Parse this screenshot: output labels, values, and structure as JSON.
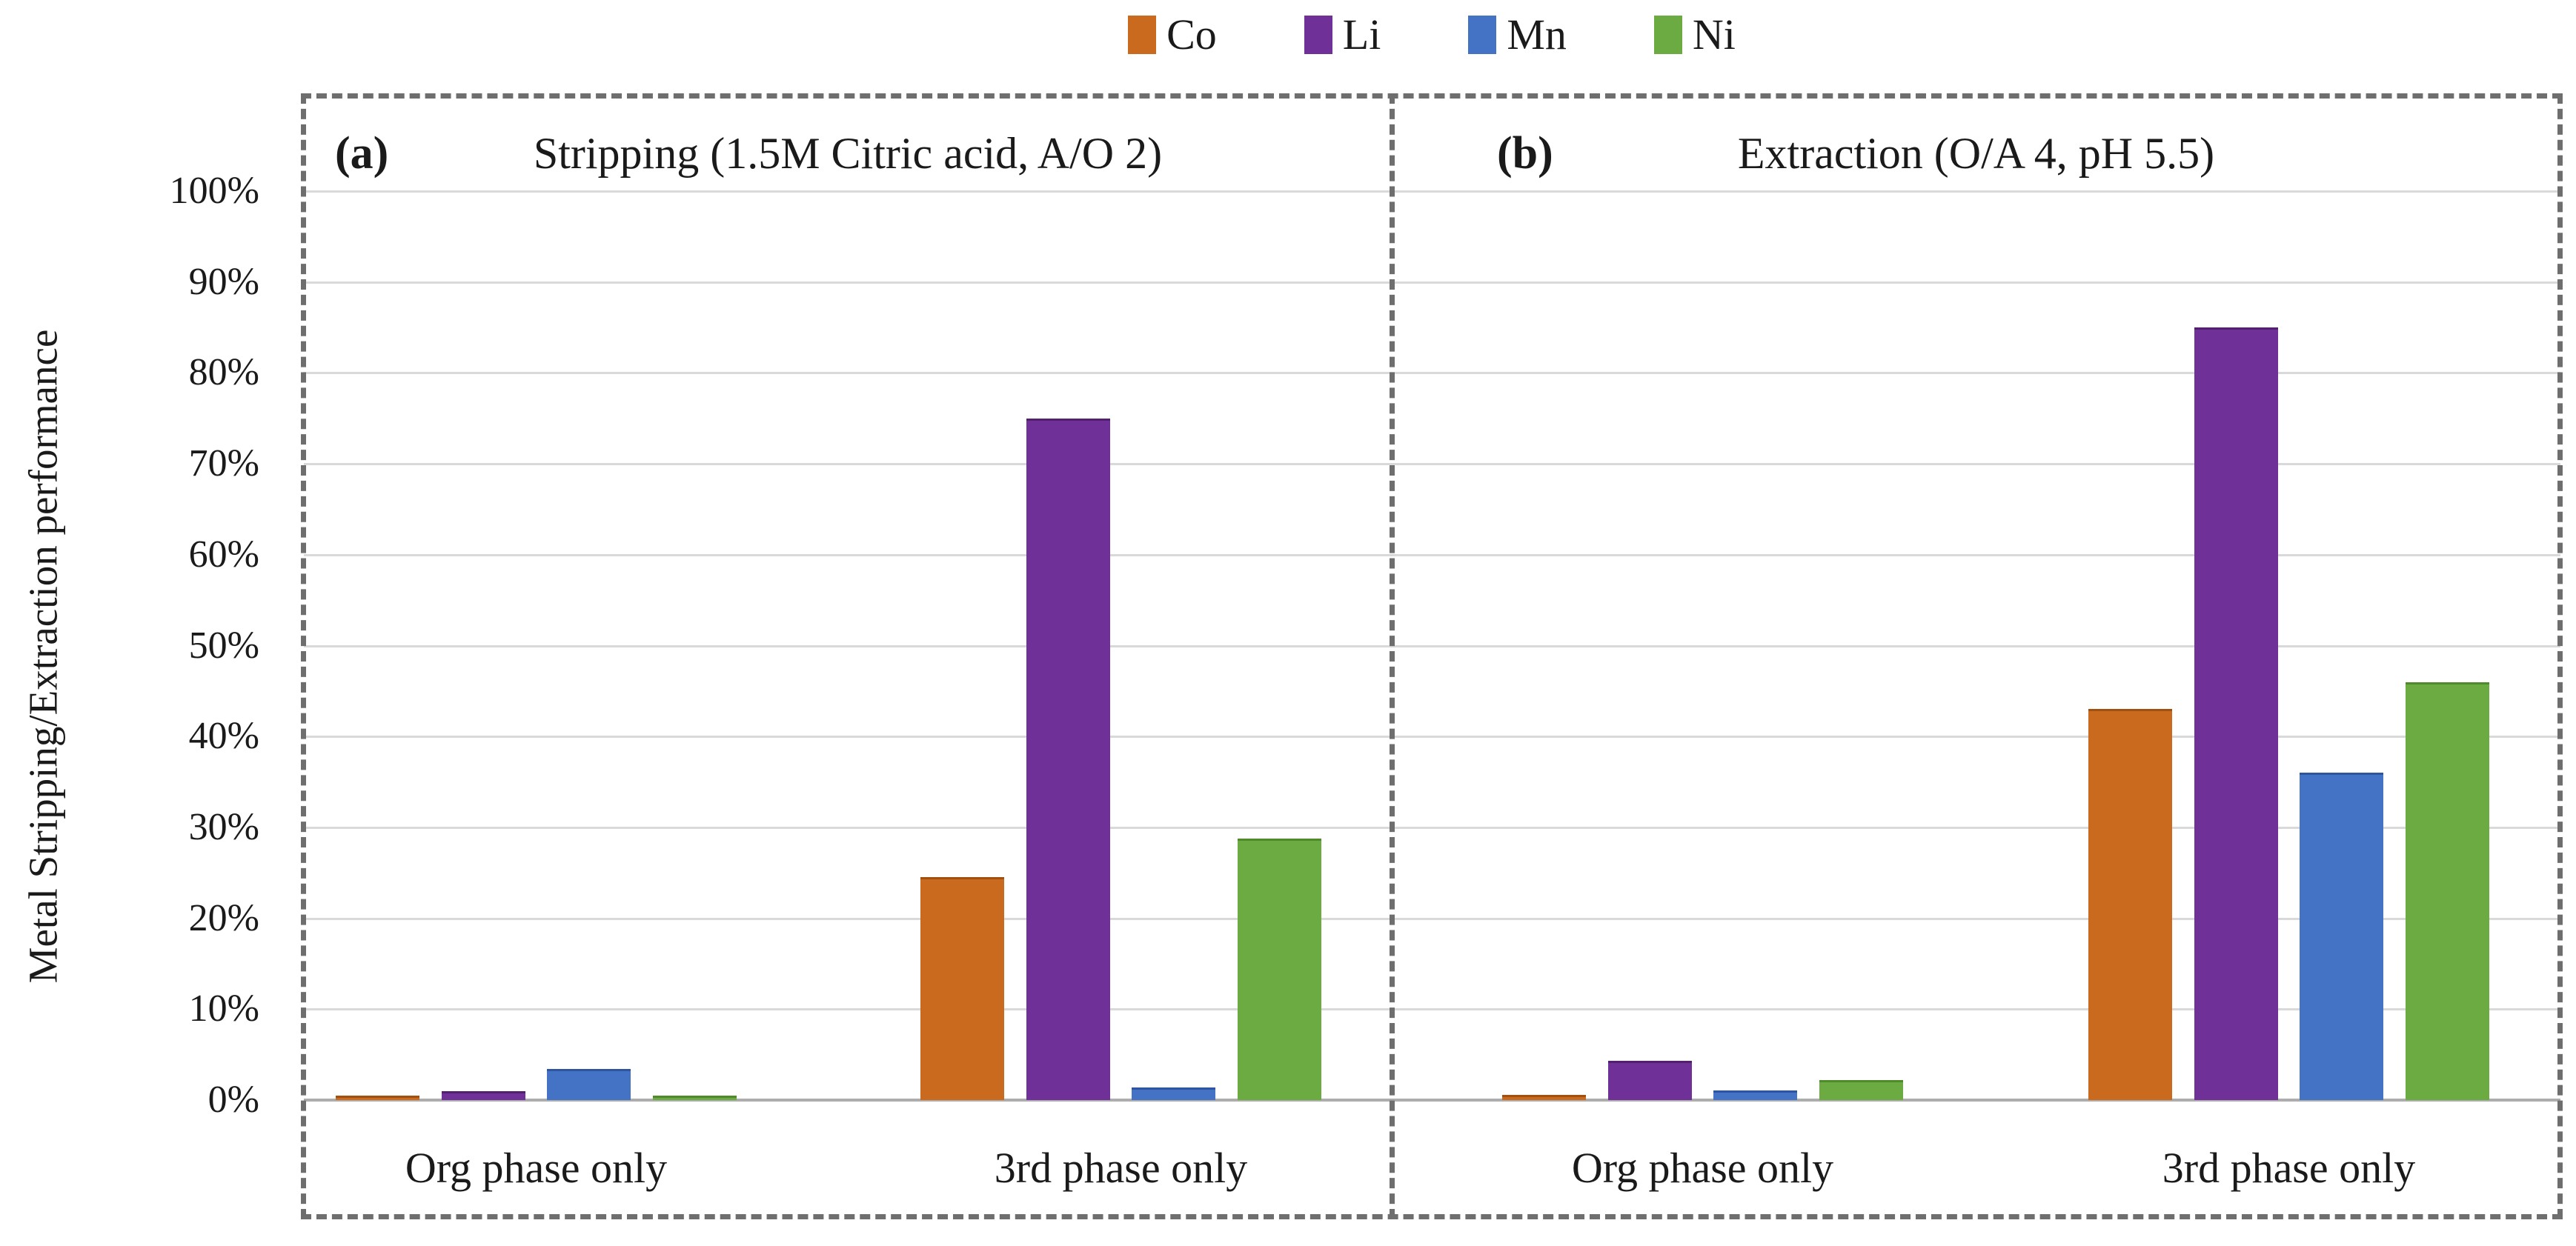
{
  "colors": {
    "background": "#FFFFFF",
    "gridline": "#D9D9D9",
    "axis_line": "#ADADAD",
    "dashed_border": "#6E6E6E"
  },
  "legend": {
    "items": [
      {
        "label": "Co",
        "color": "#C96A1F",
        "edge": "#A1500F"
      },
      {
        "label": "Li",
        "color": "#6F3198",
        "edge": "#53206F"
      },
      {
        "label": "Mn",
        "color": "#4472C4",
        "edge": "#2F54A0"
      },
      {
        "label": "Ni",
        "color": "#6BAB41",
        "edge": "#4F8A2B"
      }
    ]
  },
  "chart_data": {
    "type": "bar",
    "ylabel": "Metal Stripping/Extraction performance",
    "ylim": [
      0,
      100
    ],
    "ytick_step": 10,
    "y_tick_labels": [
      "0%",
      "10%",
      "20%",
      "30%",
      "40%",
      "50%",
      "60%",
      "70%",
      "80%",
      "90%",
      "100%"
    ],
    "grid": true,
    "legend_position": "top-center",
    "unit": "percent",
    "panels": [
      {
        "marker": "(a)",
        "title": "Stripping (1.5M Citric acid, A/O 2)",
        "categories": [
          "Org phase only",
          "3rd phase only"
        ],
        "series": [
          {
            "name": "Co",
            "values": [
              0.5,
              24.5
            ]
          },
          {
            "name": "Li",
            "values": [
              1.0,
              75.0
            ]
          },
          {
            "name": "Mn",
            "values": [
              3.4,
              1.4
            ]
          },
          {
            "name": "Ni",
            "values": [
              0.5,
              28.8
            ]
          }
        ]
      },
      {
        "marker": "(b)",
        "title": "Extraction (O/A 4, pH 5.5)",
        "categories": [
          "Org phase only",
          "3rd phase only"
        ],
        "series": [
          {
            "name": "Co",
            "values": [
              0.6,
              43.0
            ]
          },
          {
            "name": "Li",
            "values": [
              4.3,
              85.0
            ]
          },
          {
            "name": "Mn",
            "values": [
              1.1,
              36.0
            ]
          },
          {
            "name": "Ni",
            "values": [
              2.2,
              46.0
            ]
          }
        ]
      }
    ]
  }
}
